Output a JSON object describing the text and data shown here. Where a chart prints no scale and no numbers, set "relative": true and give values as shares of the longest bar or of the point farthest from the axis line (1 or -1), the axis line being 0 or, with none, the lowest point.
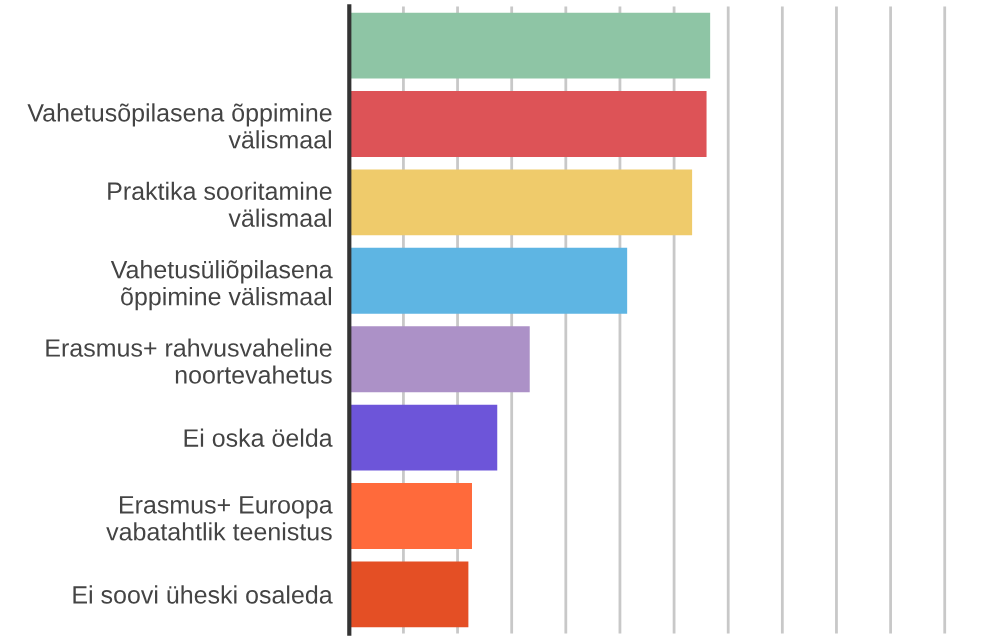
{
  "chart_data": {
    "type": "bar",
    "orientation": "horizontal",
    "relative": true,
    "grid": "x",
    "categories": [
      null,
      "Vahetusõpilasena õppimine\nvälismaal",
      "Praktika sooritamine\nvälismaal",
      "Vahetusüliõpilasena\nõppimine välismaal",
      "Erasmus+ rahvusvaheline\nnoortevahetus",
      "Ei oska öelda",
      "Erasmus+ Euroopa\nvabatahtlik teenistus",
      "Ei soovi üheski osaleda"
    ],
    "values": [
      1,
      0.99,
      0.95,
      0.77,
      0.5,
      0.41,
      0.34,
      0.33
    ],
    "colors": [
      "#8ec5a5",
      "#dd5357",
      "#efcb6b",
      "#5eb5e3",
      "#ac91c7",
      "#6d55d9",
      "#ff6a3b",
      "#e44f25"
    ]
  }
}
